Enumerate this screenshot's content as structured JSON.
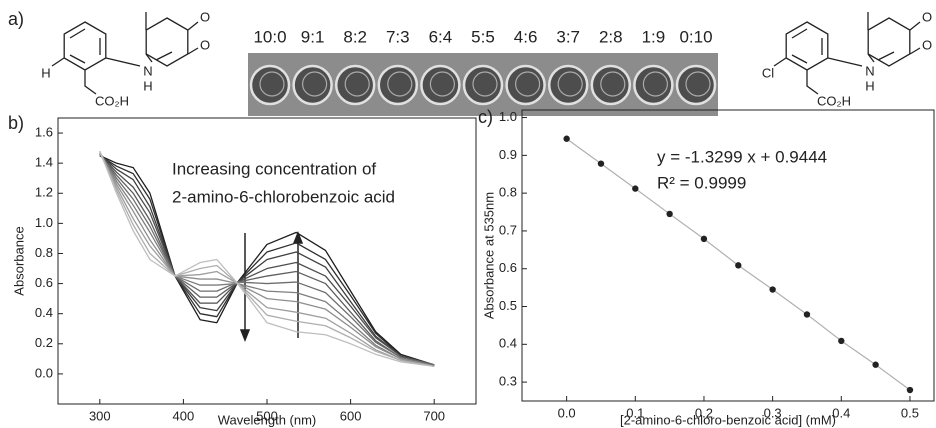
{
  "panel_a": {
    "label": "a)",
    "ratios": [
      "10:0",
      "9:1",
      "8:2",
      "7:3",
      "6:4",
      "5:5",
      "4:6",
      "3:7",
      "2:8",
      "1:9",
      "0:10"
    ],
    "molecules": [
      {
        "atoms": [
          "H",
          "N",
          "H",
          "CO₂H",
          "O",
          "O"
        ]
      },
      {
        "atoms": [
          "Cl",
          "N",
          "H",
          "CO₂H",
          "O",
          "O"
        ]
      }
    ]
  },
  "chart_data": [
    {
      "type": "line",
      "panel_label": "b)",
      "x_label": "Wavelength (nm)",
      "y_label": "Absorbance",
      "annotations": [
        "Increasing concentration of",
        "2-amino-6-chlorobenzoic acid"
      ],
      "x": [
        300,
        320,
        340,
        360,
        390,
        420,
        440,
        465,
        500,
        535,
        570,
        600,
        630,
        660,
        700
      ],
      "series": [
        {
          "color": "#1e1e1e",
          "values": [
            1.45,
            1.4,
            1.37,
            1.2,
            0.65,
            0.36,
            0.34,
            0.61,
            0.86,
            0.94,
            0.82,
            0.55,
            0.28,
            0.13,
            0.06
          ]
        },
        {
          "color": "#2e2e2e",
          "values": [
            1.45,
            1.38,
            1.33,
            1.16,
            0.65,
            0.4,
            0.38,
            0.61,
            0.81,
            0.87,
            0.76,
            0.52,
            0.27,
            0.12,
            0.06
          ]
        },
        {
          "color": "#3e3e3e",
          "values": [
            1.46,
            1.36,
            1.29,
            1.11,
            0.65,
            0.44,
            0.42,
            0.61,
            0.76,
            0.81,
            0.71,
            0.48,
            0.25,
            0.12,
            0.06
          ]
        },
        {
          "color": "#4e4e4e",
          "values": [
            1.46,
            1.34,
            1.24,
            1.07,
            0.65,
            0.47,
            0.47,
            0.61,
            0.7,
            0.74,
            0.65,
            0.45,
            0.24,
            0.12,
            0.06
          ]
        },
        {
          "color": "#5e5e5e",
          "values": [
            1.46,
            1.32,
            1.2,
            1.02,
            0.65,
            0.51,
            0.51,
            0.61,
            0.65,
            0.68,
            0.6,
            0.41,
            0.22,
            0.11,
            0.06
          ]
        },
        {
          "color": "#6e6e6e",
          "values": [
            1.47,
            1.3,
            1.16,
            0.98,
            0.65,
            0.55,
            0.55,
            0.61,
            0.6,
            0.61,
            0.54,
            0.38,
            0.21,
            0.11,
            0.06
          ]
        },
        {
          "color": "#7e7e7e",
          "values": [
            1.47,
            1.28,
            1.12,
            0.94,
            0.65,
            0.59,
            0.59,
            0.6,
            0.55,
            0.54,
            0.48,
            0.34,
            0.19,
            0.1,
            0.05
          ]
        },
        {
          "color": "#8e8e8e",
          "values": [
            1.47,
            1.26,
            1.08,
            0.89,
            0.65,
            0.63,
            0.63,
            0.6,
            0.5,
            0.48,
            0.43,
            0.31,
            0.18,
            0.1,
            0.05
          ]
        },
        {
          "color": "#9e9e9e",
          "values": [
            1.47,
            1.24,
            1.03,
            0.85,
            0.65,
            0.66,
            0.68,
            0.6,
            0.44,
            0.41,
            0.37,
            0.27,
            0.16,
            0.09,
            0.05
          ]
        },
        {
          "color": "#aeaeae",
          "values": [
            1.48,
            1.22,
            0.99,
            0.8,
            0.65,
            0.7,
            0.72,
            0.6,
            0.39,
            0.35,
            0.32,
            0.24,
            0.15,
            0.09,
            0.05
          ]
        },
        {
          "color": "#bebebe",
          "values": [
            1.48,
            1.2,
            0.95,
            0.76,
            0.65,
            0.74,
            0.76,
            0.6,
            0.34,
            0.28,
            0.26,
            0.2,
            0.13,
            0.08,
            0.05
          ]
        }
      ],
      "xlim": [
        250,
        750
      ],
      "ylim": [
        -0.2,
        1.7
      ],
      "xticks": [
        300,
        400,
        500,
        600,
        700
      ],
      "yticks": [
        {
          "value": 0,
          "label": "0.0"
        },
        {
          "value": 0.2,
          "label": "0.2"
        },
        {
          "value": 0.4,
          "label": "0.4"
        },
        {
          "value": 0.6,
          "label": "0.6"
        },
        {
          "value": 0.8,
          "label": "0.8"
        },
        {
          "value": 1,
          "label": "1.0"
        },
        {
          "value": 1.2,
          "label": "1.2"
        },
        {
          "value": 1.4,
          "label": "1.4"
        },
        {
          "value": 1.6,
          "label": "1.6"
        }
      ]
    },
    {
      "type": "scatter",
      "panel_label": "c)",
      "x_label": "[2-amino-6-chloro-benzoic acid] (mM)",
      "y_label": "Absorbance at 535nm",
      "annotations": [
        "y = -1.3299 x + 0.9444",
        "R² = 0.9999"
      ],
      "x": [
        0,
        0.05,
        0.1,
        0.15,
        0.2,
        0.25,
        0.3,
        0.35,
        0.4,
        0.45,
        0.5
      ],
      "values": [
        0.944,
        0.878,
        0.812,
        0.745,
        0.679,
        0.609,
        0.545,
        0.479,
        0.409,
        0.346,
        0.279
      ],
      "color": "#222222",
      "line_color": "#b0b0b0",
      "xlim": [
        -0.065,
        0.535
      ],
      "ylim": [
        0.25,
        1.02
      ],
      "xticks": [
        {
          "value": 0,
          "label": "0.0"
        },
        {
          "value": 0.1,
          "label": "0.1"
        },
        {
          "value": 0.2,
          "label": "0.2"
        },
        {
          "value": 0.3,
          "label": "0.3"
        },
        {
          "value": 0.4,
          "label": "0.4"
        },
        {
          "value": 0.5,
          "label": "0.5"
        }
      ],
      "yticks": [
        0.3,
        0.4,
        0.5,
        0.6,
        0.7,
        0.8,
        0.9,
        {
          "value": 1,
          "label": "1.0"
        }
      ]
    }
  ]
}
